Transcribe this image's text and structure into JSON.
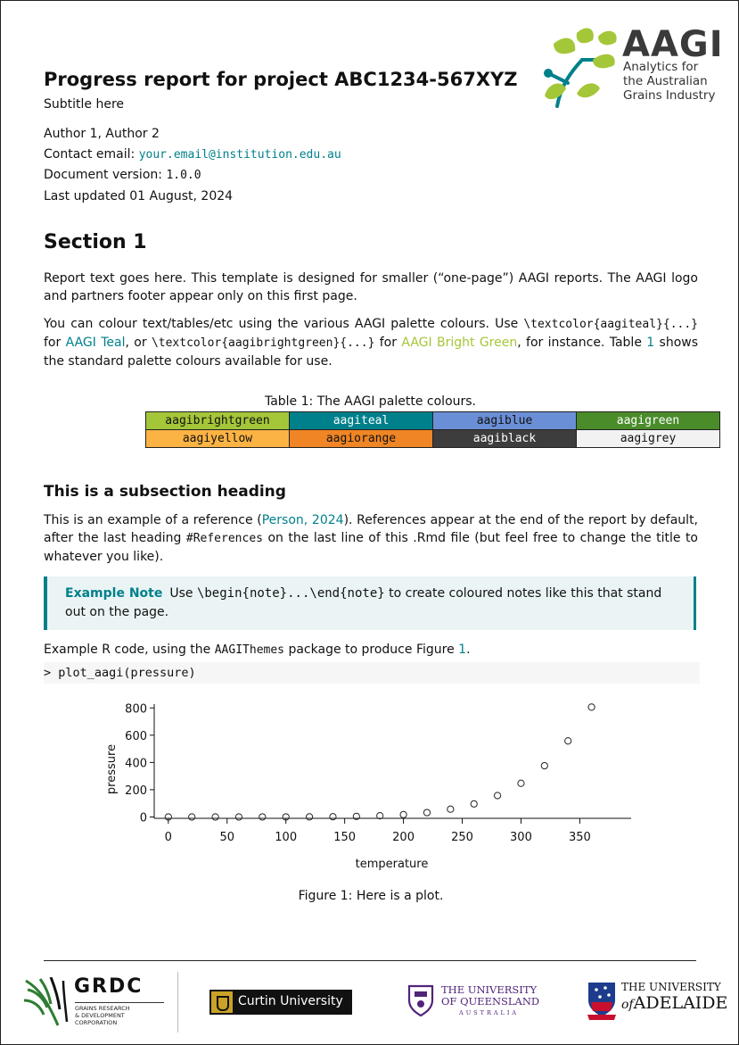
{
  "header": {
    "title": "Progress report for project ABC1234-567XYZ",
    "subtitle": "Subtitle here",
    "authors": "Author 1, Author 2",
    "contact_label": "Contact email:",
    "contact_email": "your.email@institution.edu.au",
    "version_label": "Document version:",
    "version": "1.0.0",
    "updated": "Last updated 01 August, 2024"
  },
  "logo": {
    "wordmark": "AAGI",
    "tagline": [
      "Analytics for",
      "the Australian",
      "Grains Industry"
    ]
  },
  "section1": {
    "heading": "Section 1",
    "p1": "Report text goes here. This template is designed for smaller (“one-page”) AAGI reports. The AAGI logo and partners footer appear only on this first page.",
    "p2_a": "You can colour text/tables/etc using the various AAGI palette colours. Use ",
    "p2_code1": "\\textcolor{aagiteal}{...}",
    "p2_b": " for ",
    "p2_teal": "AAGI Teal",
    "p2_c": ", or ",
    "p2_code2": "\\textcolor{aagibrightgreen}{...}",
    "p2_d": " for ",
    "p2_green": "AAGI Bright Green",
    "p2_e": ", for instance. Table ",
    "p2_ref": "1",
    "p2_f": " shows the standard palette colours available for use."
  },
  "palette_table": {
    "caption": "Table 1: The AAGI palette colours.",
    "rows": [
      [
        {
          "name": "aagibrightgreen",
          "bg": "#a4c639",
          "fg": "#111111"
        },
        {
          "name": "aagiteal",
          "bg": "#00808b",
          "fg": "#ffffff"
        },
        {
          "name": "aagiblue",
          "bg": "#6b8fd6",
          "fg": "#111111"
        },
        {
          "name": "aagigreen",
          "bg": "#4a8c2a",
          "fg": "#ffffff"
        }
      ],
      [
        {
          "name": "aagiyellow",
          "bg": "#fbb343",
          "fg": "#111111"
        },
        {
          "name": "aagiorange",
          "bg": "#ef8524",
          "fg": "#111111"
        },
        {
          "name": "aagiblack",
          "bg": "#3d3d3d",
          "fg": "#ffffff"
        },
        {
          "name": "aagigrey",
          "bg": "#f2f2f2",
          "fg": "#111111"
        }
      ]
    ]
  },
  "subsection": {
    "heading": "This is a subsection heading",
    "p_a": "This is an example of a reference (",
    "p_ref": "Person, 2024",
    "p_b": "). References appear at the end of the report by default, after the last heading ",
    "p_code": "#References",
    "p_c": " on the last line of this .Rmd file (but feel free to change the title to whatever you like)."
  },
  "note": {
    "title": "Example Note",
    "text_a": "Use ",
    "code": "\\begin{note}...\\end{note}",
    "text_b": " to create coloured notes like this that stand out on the page."
  },
  "code_intro": {
    "a": "Example R code, using the ",
    "pkg": "AAGIThemes",
    "b": " package to produce Figure ",
    "ref": "1",
    "c": "."
  },
  "code_line": "> plot_aagi(pressure)",
  "chart_data": {
    "type": "scatter",
    "xlabel": "temperature",
    "ylabel": "pressure",
    "xlim": [
      0,
      360
    ],
    "ylim": [
      0,
      806
    ],
    "x_ticks": [
      0,
      50,
      100,
      150,
      200,
      250,
      300,
      350
    ],
    "y_ticks": [
      0,
      200,
      400,
      600,
      800
    ],
    "x": [
      0,
      20,
      40,
      60,
      80,
      100,
      120,
      140,
      160,
      180,
      200,
      220,
      240,
      260,
      280,
      300,
      320,
      340,
      360
    ],
    "y": [
      0.0002,
      0.0012,
      0.006,
      0.03,
      0.09,
      0.27,
      0.75,
      1.85,
      4.2,
      8.8,
      17.3,
      32.1,
      57,
      96,
      157,
      247,
      376,
      558,
      806
    ]
  },
  "figure_caption": "Figure 1: Here is a plot.",
  "footer": {
    "grdc_name": "GRDC",
    "grdc_sub": [
      "GRAINS RESEARCH",
      "& DEVELOPMENT",
      "CORPORATION"
    ],
    "curtin": "Curtin University",
    "uq_line1": "THE UNIVERSITY",
    "uq_line2": "OF QUEENSLAND",
    "uq_line3": "AUSTRALIA",
    "adelaide_line1": "THE UNIVERSITY",
    "adelaide_of": "of",
    "adelaide_line2": "ADELAIDE"
  }
}
